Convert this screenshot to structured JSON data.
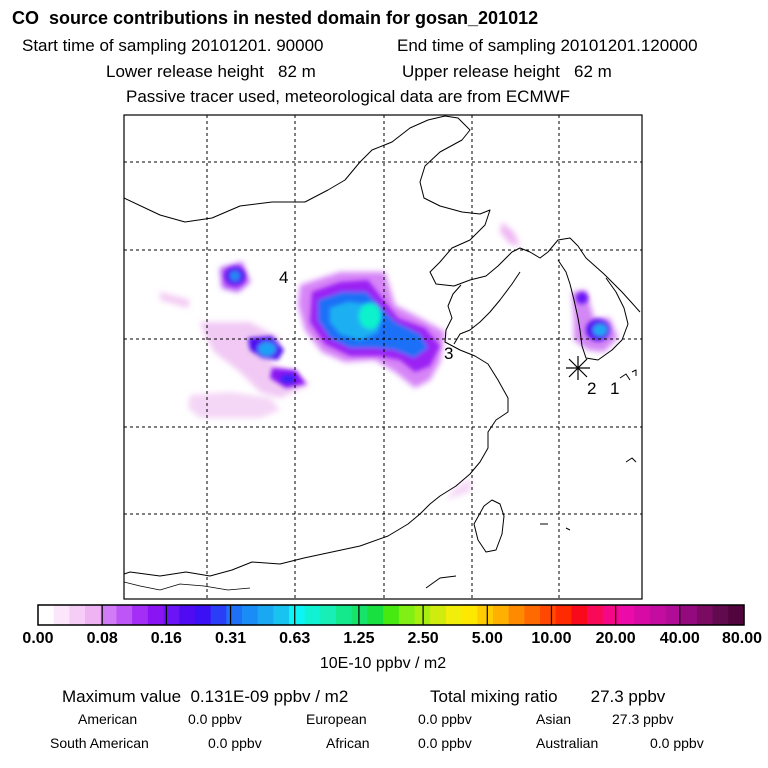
{
  "header": {
    "title": "CO  source contributions in nested domain for gosan_201012",
    "start_time": "Start time of sampling 20101201. 90000",
    "end_time": "End time of sampling 20101201.120000",
    "lower_height": "Lower release height   82 m",
    "upper_height": "Upper release height   62 m",
    "note": "Passive tracer used, meteorological data are from ECMWF"
  },
  "map": {
    "receptor_marker": "asterisk-icon",
    "source_labels": [
      "4",
      "3",
      "2",
      "1"
    ]
  },
  "colorbar": {
    "colors": [
      "#ffffff",
      "#fbe6fb",
      "#f6cdf6",
      "#efb3f3",
      "#d17bf7",
      "#bd55f7",
      "#a52ef6",
      "#8a14f4",
      "#6b15f7",
      "#4f0cf2",
      "#3c10f5",
      "#2a3ef8",
      "#1f6ff7",
      "#1a8cf5",
      "#1aa8f3",
      "#18c3f0",
      "#0df4f4",
      "#10f2d2",
      "#18efb7",
      "#14e98c",
      "#16e36a",
      "#18e040",
      "#47ea10",
      "#80ef14",
      "#a8ef10",
      "#d0ec0e",
      "#f0ee0a",
      "#ffe800",
      "#ffcc00",
      "#ffb000",
      "#ff8a00",
      "#ff6a00",
      "#ff4800",
      "#ff2a00",
      "#f80a1a",
      "#f80a58",
      "#f50888",
      "#ec0aa8",
      "#d80aa6",
      "#c40ca0",
      "#b00c98",
      "#95097e",
      "#7a0a62",
      "#620a4e",
      "#52043e"
    ],
    "tick_labels": [
      "0.00",
      "0.08",
      "0.16",
      "0.31",
      "0.63",
      "1.25",
      "2.50",
      "5.00",
      "10.00",
      "20.00",
      "40.00",
      "80.00"
    ],
    "unit": "10E-10 ppbv / m2"
  },
  "stats": {
    "max_value": "Maximum value  0.131E-09 ppbv / m2",
    "total_mixing": "Total mixing ratio       27.3 ppbv",
    "american": "American",
    "american_val": "0.0 ppbv",
    "european": "European",
    "european_val": "0.0 ppbv",
    "asian": "Asian",
    "asian_val": "27.3 ppbv",
    "south_american": "South American",
    "south_american_val": "0.0 ppbv",
    "african": "African",
    "african_val": "0.0 ppbv",
    "australian": "Australian",
    "australian_val": "0.0 ppbv"
  }
}
